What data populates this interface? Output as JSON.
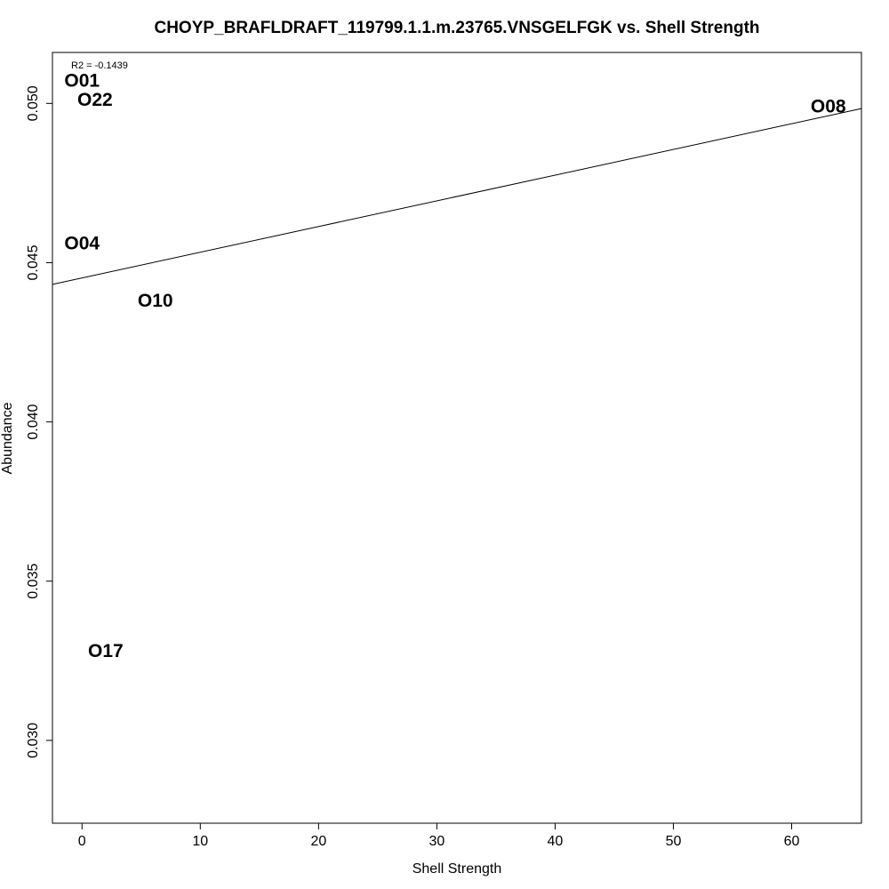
{
  "chart_data": {
    "type": "scatter",
    "title": "CHOYP_BRAFLDRAFT_119799.1.1.m.23765.VNSGELFGK vs. Shell Strength",
    "xlabel": "Shell Strength",
    "ylabel": "Abundance",
    "xlim": [
      -2.5,
      65.9
    ],
    "ylim": [
      0.0274,
      0.0516
    ],
    "xticks": [
      0,
      10,
      20,
      30,
      40,
      50,
      60
    ],
    "xtick_labels": [
      "0",
      "10",
      "20",
      "30",
      "40",
      "50",
      "60"
    ],
    "yticks": [
      0.03,
      0.035,
      0.04,
      0.045,
      0.05
    ],
    "ytick_labels": [
      "0.030",
      "0.035",
      "0.040",
      "0.045",
      "0.050"
    ],
    "annotation": "R2 = -0.1439",
    "grid": false,
    "points": [
      {
        "label": "O01",
        "x": 0.0,
        "y": 0.0507
      },
      {
        "label": "O22",
        "x": 1.1,
        "y": 0.0501
      },
      {
        "label": "O04",
        "x": 0.0,
        "y": 0.0456
      },
      {
        "label": "O10",
        "x": 6.2,
        "y": 0.0438
      },
      {
        "label": "O17",
        "x": 2.0,
        "y": 0.0328
      },
      {
        "label": "O08",
        "x": 63.1,
        "y": 0.0499
      }
    ],
    "regression": {
      "intercept": 0.04452,
      "slope": 8.07e-05
    }
  }
}
